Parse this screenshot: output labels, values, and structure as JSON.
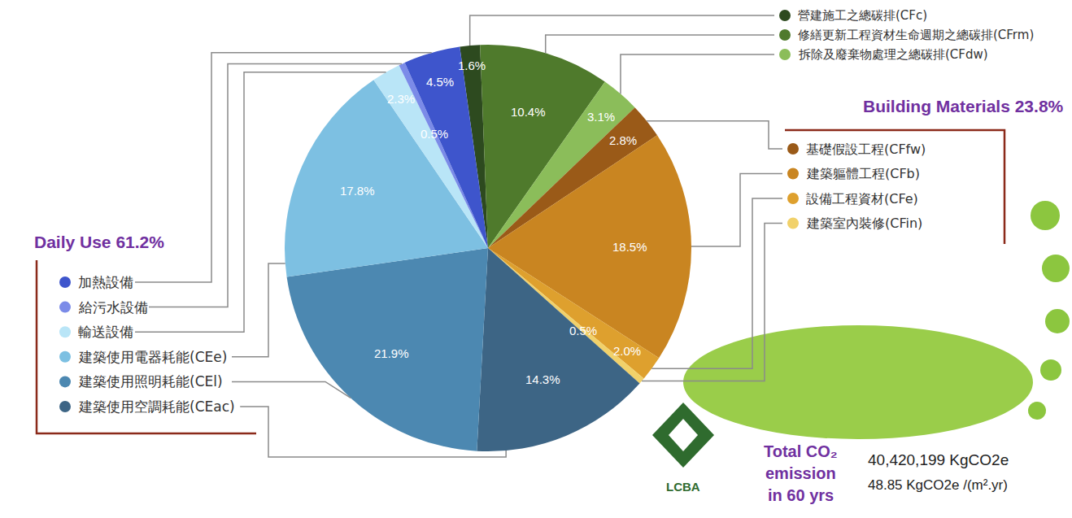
{
  "chart_data": {
    "type": "pie",
    "categories": [
      "營建施工之總碳排(CFc)",
      "修繕更新工程資材生命週期之總碳排(CFrm)",
      "拆除及廢棄物處理之總碳排(CFdw)",
      "基礎假設工程(CFfw)",
      "建築軀體工程(CFb)",
      "設備工程資材(CFe)",
      "建築室內裝修(CFin)",
      "建築使用空調耗能(CEac)",
      "建築使用照明耗能(CEl)",
      "建築使用電器耗能(CEe)",
      "輸送設備",
      "給污水設備",
      "加熱設備"
    ],
    "values": [
      1.6,
      10.4,
      3.1,
      2.8,
      18.5,
      2.0,
      0.5,
      14.3,
      21.9,
      17.8,
      2.3,
      0.5,
      4.5
    ],
    "value_labels": [
      "1.6%",
      "10.4%",
      "3.1%",
      "2.8%",
      "18.5%",
      "2.0%",
      "0.5%",
      "14.3%",
      "21.9%",
      "17.8%",
      "2.3%",
      "0.5%",
      "4.5%"
    ],
    "colors": [
      "#2d4a1f",
      "#4f7a2c",
      "#8bbd5a",
      "#9a5a18",
      "#c98521",
      "#dea02e",
      "#f1d16a",
      "#3d6585",
      "#4c88b1",
      "#7dc0e2",
      "#b9e5f7",
      "#7b8be8",
      "#3e55cc"
    ],
    "data_labels": true,
    "groups": [
      {
        "labels": [
          "營建施工之總碳排(CFc)",
          "修繕更新工程資材生命週期之總碳排(CFrm)",
          "拆除及廢棄物處理之總碳排(CFdw)"
        ]
      },
      {
        "title": "Building Materials 23.8%",
        "labels": [
          "基礎假設工程(CFfw)",
          "建築軀體工程(CFb)",
          "設備工程資材(CFe)",
          "建築室內裝修(CFin)"
        ]
      },
      {
        "title": "Daily Use 61.2%",
        "labels": [
          "加熱設備",
          "給污水設備",
          "輸送設備",
          "建築使用電器耗能(CEe)",
          "建築使用照明耗能(CEl)",
          "建築使用空調耗能(CEac)"
        ]
      }
    ],
    "total_title": "Total CO₂ emission in 60 yrs",
    "totals": [
      "40,420,199 KgCO2e",
      "48.85 KgCO2e /(m².yr)"
    ],
    "logo": "LCBA"
  }
}
